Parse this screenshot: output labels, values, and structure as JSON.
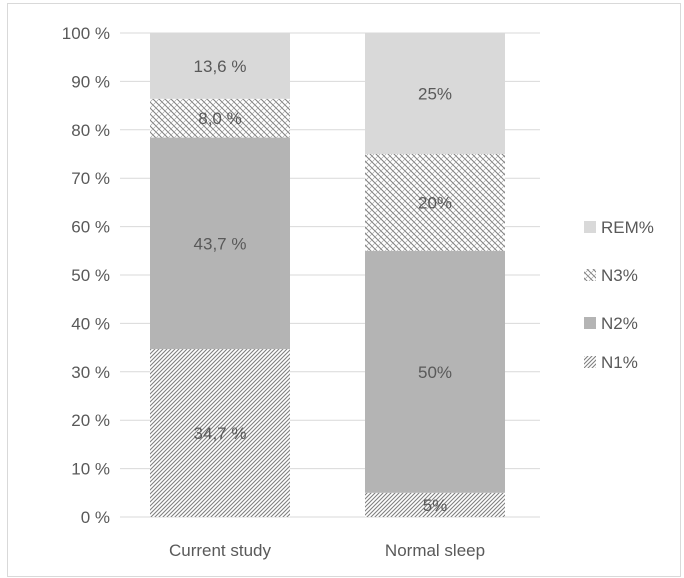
{
  "chart_data": {
    "type": "bar",
    "stacked": true,
    "orientation": "vertical",
    "categories": [
      "Current study",
      "Normal sleep"
    ],
    "series": [
      {
        "name": "N1%",
        "values": [
          34.7,
          5
        ],
        "labels": [
          "34,7 %",
          "5%"
        ],
        "pattern": "diagonal-dense",
        "color": "#7f7f7f"
      },
      {
        "name": "N2%",
        "values": [
          43.7,
          50
        ],
        "labels": [
          "43,7 %",
          "50%"
        ],
        "pattern": "solid",
        "color": "#b4b4b4"
      },
      {
        "name": "N3%",
        "values": [
          8.0,
          20
        ],
        "labels": [
          "8,0 %",
          "20%"
        ],
        "pattern": "crosshatch",
        "color": "#7f7f7f"
      },
      {
        "name": "REM%",
        "values": [
          13.6,
          25
        ],
        "labels": [
          "13,6 %",
          "25%"
        ],
        "pattern": "solid",
        "color": "#d9d9d9"
      }
    ],
    "ylim": [
      0,
      100
    ],
    "yticks": [
      "0 %",
      "10 %",
      "20 %",
      "30 %",
      "40 %",
      "50 %",
      "60 %",
      "70 %",
      "80 %",
      "90 %",
      "100 %"
    ],
    "legend": {
      "position": "right",
      "order": [
        "REM%",
        "N3%",
        "N2%",
        "N1%"
      ]
    },
    "grid": true,
    "title": "",
    "xlabel": "",
    "ylabel": ""
  }
}
